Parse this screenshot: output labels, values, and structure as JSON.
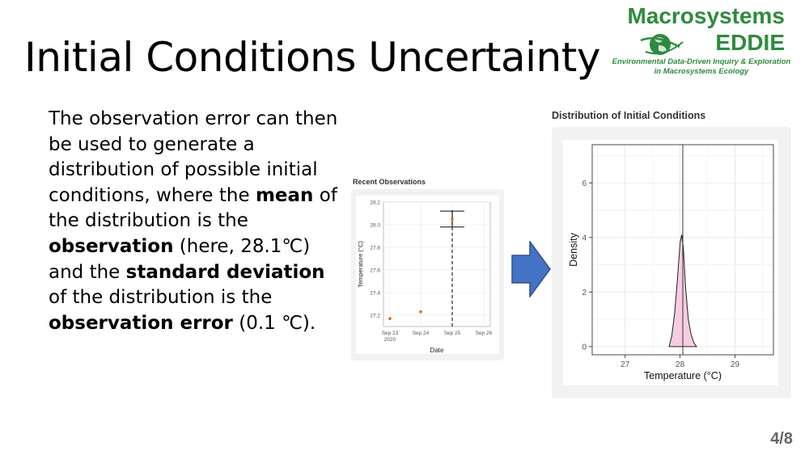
{
  "slide": {
    "title": "Initial Conditions Uncertainty",
    "page_number": "4/8"
  },
  "logo": {
    "line1": "Macrosystems",
    "line2": "EDDIE",
    "line3": "Environmental Data-Driven Inquiry & Exploration",
    "line4": "in Macrosystems Ecology",
    "color": "#2e8b3e"
  },
  "body_text": {
    "t1": "The observation error can then be used to generate a distribution of possible initial conditions, where the ",
    "b1": "mean",
    "t2": " of the distribution is the ",
    "b2": "observation",
    "t3": " (here, 28.1℃) and the ",
    "b3": "standard deviation",
    "t4": " of the distribution is the ",
    "b4": "observation error",
    "t5": " (0.1 ℃)."
  },
  "chart_data": [
    {
      "type": "scatter",
      "title": "Recent Observations",
      "xlabel": "Date",
      "ylabel": "Temperature (°C)",
      "x_ticks": [
        "Sep 23\n2020",
        "Sep 24",
        "Sep 25",
        "Sep 26"
      ],
      "y_ticks": [
        27.2,
        27.4,
        27.6,
        27.8,
        28.0,
        28.2
      ],
      "ylim": [
        27.1,
        28.2
      ],
      "points": [
        {
          "x": "2020-09-23",
          "y": 27.17
        },
        {
          "x": "2020-09-24",
          "y": 27.23
        },
        {
          "x": "2020-09-25",
          "y": 28.05
        }
      ],
      "error_bar": {
        "x": "2020-09-25",
        "low": 27.98,
        "high": 28.12
      },
      "vline": {
        "x": "2020-09-25",
        "style": "dashed"
      },
      "point_color": "#e8651b",
      "grid": true
    },
    {
      "type": "area",
      "title": "Distribution of Initial Conditions",
      "xlabel": "Temperature (°C)",
      "ylabel": "Density",
      "x_ticks": [
        27,
        28,
        29
      ],
      "y_ticks": [
        0,
        2,
        4,
        6
      ],
      "xlim": [
        26.4,
        29.7
      ],
      "ylim": [
        -0.3,
        7.4
      ],
      "x": [
        27.8,
        27.85,
        27.9,
        27.95,
        28.0,
        28.03,
        28.06,
        28.1,
        28.15,
        28.2,
        28.25,
        28.3
      ],
      "y": [
        0.0,
        0.4,
        1.2,
        2.4,
        3.8,
        4.1,
        3.6,
        2.2,
        1.0,
        0.45,
        0.15,
        0.0
      ],
      "vline_x": 28.05,
      "fill_color": "#f6cde3",
      "grid": true
    }
  ],
  "arrow_color": "#4472c4"
}
